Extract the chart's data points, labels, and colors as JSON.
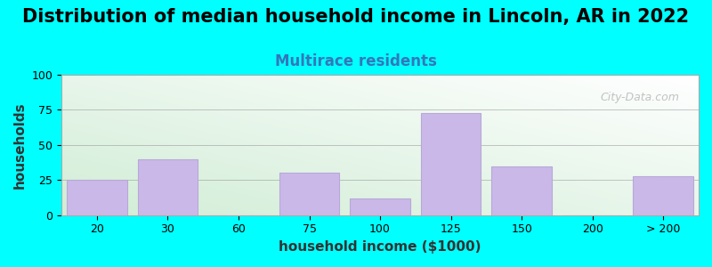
{
  "title": "Distribution of median household income in Lincoln, AR in 2022",
  "subtitle": "Multirace residents",
  "xlabel": "household income ($1000)",
  "ylabel": "households",
  "bar_labels": [
    "20",
    "30",
    "60",
    "75",
    "100",
    "125",
    "150",
    "200",
    "> 200"
  ],
  "bar_heights": [
    25,
    40,
    0,
    30,
    12,
    73,
    35,
    0,
    28
  ],
  "bar_color": "#c9b8e8",
  "bar_edgecolor": "#b8a8d8",
  "background_color": "#00ffff",
  "gradient_color_bottomleft": [
    0.82,
    0.93,
    0.84
  ],
  "gradient_color_topright": [
    1.0,
    1.0,
    1.0
  ],
  "ylim": [
    0,
    100
  ],
  "yticks": [
    0,
    25,
    50,
    75,
    100
  ],
  "title_fontsize": 15,
  "subtitle_fontsize": 12,
  "subtitle_color": "#3377bb",
  "axis_label_fontsize": 11,
  "tick_fontsize": 9,
  "watermark": "City-Data.com"
}
